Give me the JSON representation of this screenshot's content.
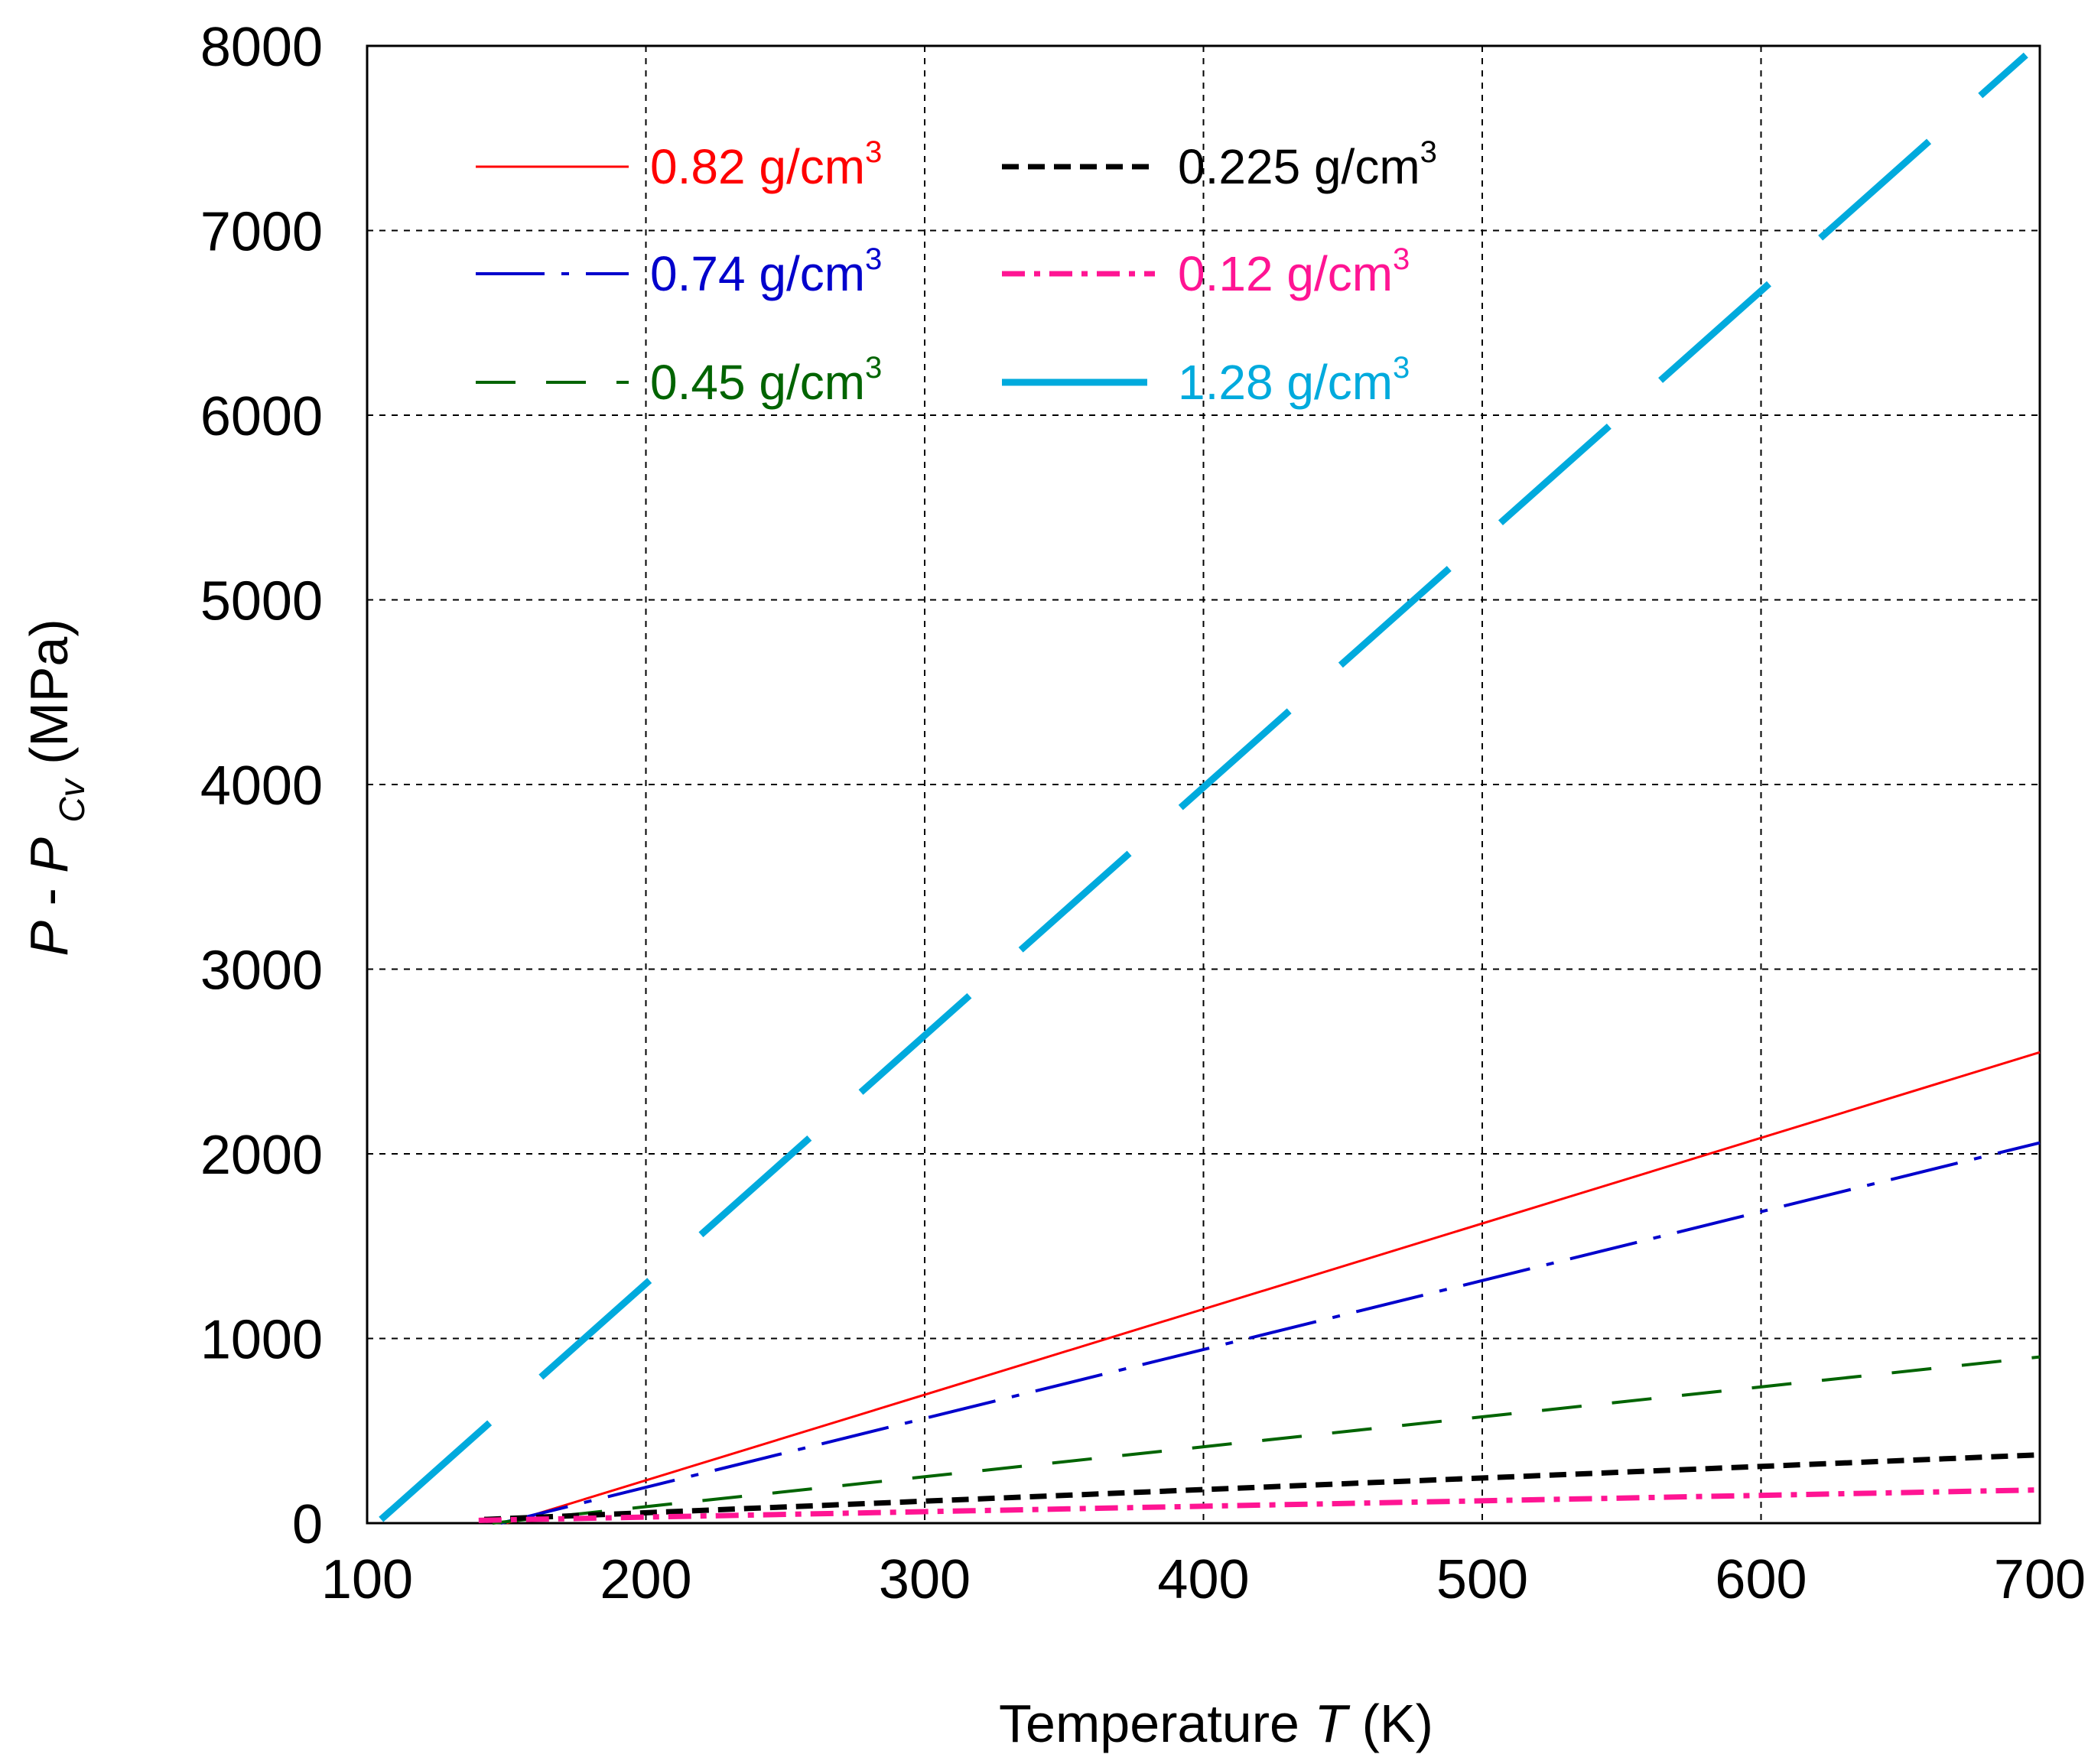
{
  "chart_data": {
    "type": "line",
    "title": "",
    "xlabel": {
      "text": "Temperature",
      "var": "T",
      "unit": "(K)"
    },
    "ylabel": {
      "var": "P",
      "sep": " - ",
      "var2": "P",
      "sub": "Cv",
      "unit": "(MPa)"
    },
    "xlim": [
      100,
      700
    ],
    "ylim": [
      0,
      8000
    ],
    "xticks": [
      100,
      200,
      300,
      400,
      500,
      600,
      700
    ],
    "yticks": [
      0,
      1000,
      2000,
      3000,
      4000,
      5000,
      6000,
      7000,
      8000
    ],
    "grid": true,
    "legend_position": "top-left",
    "series": [
      {
        "name": "0.82 g/cm",
        "unit_sup": "3",
        "color": "#ff0000",
        "style": "solid",
        "x": [
          150,
          700
        ],
        "y": [
          0,
          2550
        ]
      },
      {
        "name": "0.74 g/cm",
        "unit_sup": "3",
        "color": "#0000cc",
        "style": "longdash-dot",
        "x": [
          148,
          700
        ],
        "y": [
          0,
          2060
        ]
      },
      {
        "name": "0.45 g/cm",
        "unit_sup": "3",
        "color": "#006400",
        "style": "longdash",
        "x": [
          145,
          700
        ],
        "y": [
          0,
          900
        ]
      },
      {
        "name": "0.225 g/cm",
        "unit_sup": "3",
        "color": "#000000",
        "style": "dash",
        "x": [
          142,
          700
        ],
        "y": [
          20,
          370
        ]
      },
      {
        "name": "0.12 g/cm",
        "unit_sup": "3",
        "color": "#ff1493",
        "style": "dashdot",
        "x": [
          140,
          700
        ],
        "y": [
          15,
          180
        ]
      },
      {
        "name": "1.28 g/cm",
        "unit_sup": "3",
        "color": "#00aadd",
        "style": "verylongdash",
        "x": [
          105,
          695
        ],
        "y": [
          20,
          7950
        ]
      }
    ]
  }
}
